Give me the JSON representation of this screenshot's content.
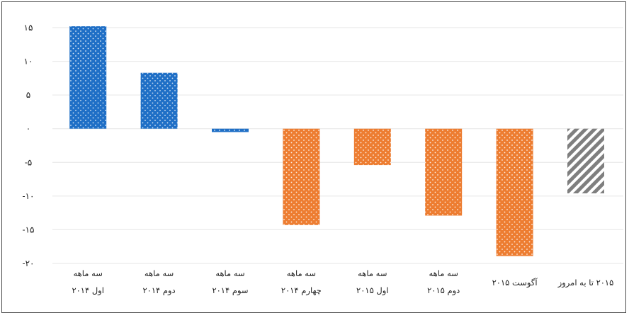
{
  "chart_data": {
    "type": "bar",
    "title": "",
    "xlabel": "",
    "ylabel": "",
    "ylim": [
      -20,
      15
    ],
    "yticks": [
      15,
      10,
      5,
      0,
      -5,
      -10,
      -15,
      -20
    ],
    "ytick_labels": [
      "۱۵",
      "۱۰",
      "۵",
      "۰",
      "-۵",
      "-۱۰",
      "-۱۵",
      "-۲۰"
    ],
    "grid": true,
    "categories": [
      [
        "سه ماهه",
        "اول ۲۰۱۴"
      ],
      [
        "سه ماهه",
        "دوم ۲۰۱۴"
      ],
      [
        "سه ماهه",
        "سوم ۲۰۱۴"
      ],
      [
        "سه ماهه",
        "چهارم ۲۰۱۴"
      ],
      [
        "سه ماهه",
        "اول ۲۰۱۵"
      ],
      [
        "سه ماهه",
        "دوم ۲۰۱۵"
      ],
      [
        "آگوست ۲۰۱۵"
      ],
      [
        "۲۰۱۵ تا به امروز"
      ]
    ],
    "values": [
      15.2,
      8.3,
      -0.5,
      -14.3,
      -5.4,
      -12.9,
      -18.9,
      -9.6
    ],
    "bar_styles": [
      "dotted-blue",
      "dotted-blue",
      "dotted-blue",
      "dotted-orange",
      "dotted-orange",
      "dotted-orange",
      "dotted-orange",
      "hatched-gray"
    ],
    "colors": {
      "blue": "#1f6fc6",
      "orange": "#ed7d31",
      "gray": "#7f7f7f"
    }
  }
}
